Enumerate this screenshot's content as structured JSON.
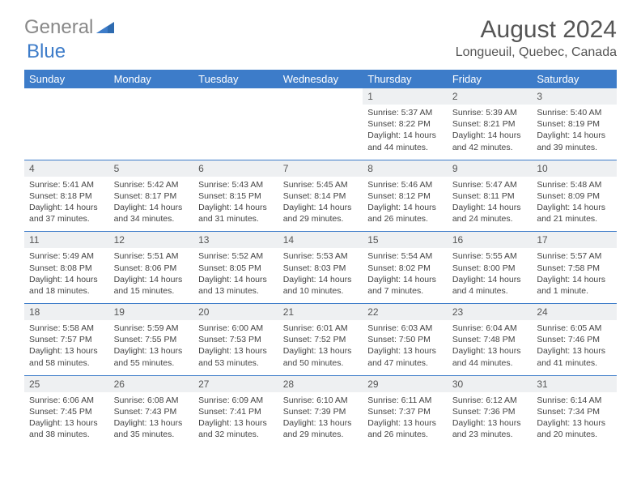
{
  "brand": {
    "part1": "General",
    "part2": "Blue"
  },
  "title": "August 2024",
  "location": "Longueuil, Quebec, Canada",
  "colors": {
    "header_bg": "#3d7cc9",
    "daynum_bg": "#eef0f2",
    "text": "#444444",
    "logo_gray": "#888888",
    "logo_blue": "#3d7cc9"
  },
  "daynames": [
    "Sunday",
    "Monday",
    "Tuesday",
    "Wednesday",
    "Thursday",
    "Friday",
    "Saturday"
  ],
  "weeks": [
    [
      null,
      null,
      null,
      null,
      {
        "n": "1",
        "sr": "Sunrise: 5:37 AM",
        "ss": "Sunset: 8:22 PM",
        "dl": "Daylight: 14 hours and 44 minutes."
      },
      {
        "n": "2",
        "sr": "Sunrise: 5:39 AM",
        "ss": "Sunset: 8:21 PM",
        "dl": "Daylight: 14 hours and 42 minutes."
      },
      {
        "n": "3",
        "sr": "Sunrise: 5:40 AM",
        "ss": "Sunset: 8:19 PM",
        "dl": "Daylight: 14 hours and 39 minutes."
      }
    ],
    [
      {
        "n": "4",
        "sr": "Sunrise: 5:41 AM",
        "ss": "Sunset: 8:18 PM",
        "dl": "Daylight: 14 hours and 37 minutes."
      },
      {
        "n": "5",
        "sr": "Sunrise: 5:42 AM",
        "ss": "Sunset: 8:17 PM",
        "dl": "Daylight: 14 hours and 34 minutes."
      },
      {
        "n": "6",
        "sr": "Sunrise: 5:43 AM",
        "ss": "Sunset: 8:15 PM",
        "dl": "Daylight: 14 hours and 31 minutes."
      },
      {
        "n": "7",
        "sr": "Sunrise: 5:45 AM",
        "ss": "Sunset: 8:14 PM",
        "dl": "Daylight: 14 hours and 29 minutes."
      },
      {
        "n": "8",
        "sr": "Sunrise: 5:46 AM",
        "ss": "Sunset: 8:12 PM",
        "dl": "Daylight: 14 hours and 26 minutes."
      },
      {
        "n": "9",
        "sr": "Sunrise: 5:47 AM",
        "ss": "Sunset: 8:11 PM",
        "dl": "Daylight: 14 hours and 24 minutes."
      },
      {
        "n": "10",
        "sr": "Sunrise: 5:48 AM",
        "ss": "Sunset: 8:09 PM",
        "dl": "Daylight: 14 hours and 21 minutes."
      }
    ],
    [
      {
        "n": "11",
        "sr": "Sunrise: 5:49 AM",
        "ss": "Sunset: 8:08 PM",
        "dl": "Daylight: 14 hours and 18 minutes."
      },
      {
        "n": "12",
        "sr": "Sunrise: 5:51 AM",
        "ss": "Sunset: 8:06 PM",
        "dl": "Daylight: 14 hours and 15 minutes."
      },
      {
        "n": "13",
        "sr": "Sunrise: 5:52 AM",
        "ss": "Sunset: 8:05 PM",
        "dl": "Daylight: 14 hours and 13 minutes."
      },
      {
        "n": "14",
        "sr": "Sunrise: 5:53 AM",
        "ss": "Sunset: 8:03 PM",
        "dl": "Daylight: 14 hours and 10 minutes."
      },
      {
        "n": "15",
        "sr": "Sunrise: 5:54 AM",
        "ss": "Sunset: 8:02 PM",
        "dl": "Daylight: 14 hours and 7 minutes."
      },
      {
        "n": "16",
        "sr": "Sunrise: 5:55 AM",
        "ss": "Sunset: 8:00 PM",
        "dl": "Daylight: 14 hours and 4 minutes."
      },
      {
        "n": "17",
        "sr": "Sunrise: 5:57 AM",
        "ss": "Sunset: 7:58 PM",
        "dl": "Daylight: 14 hours and 1 minute."
      }
    ],
    [
      {
        "n": "18",
        "sr": "Sunrise: 5:58 AM",
        "ss": "Sunset: 7:57 PM",
        "dl": "Daylight: 13 hours and 58 minutes."
      },
      {
        "n": "19",
        "sr": "Sunrise: 5:59 AM",
        "ss": "Sunset: 7:55 PM",
        "dl": "Daylight: 13 hours and 55 minutes."
      },
      {
        "n": "20",
        "sr": "Sunrise: 6:00 AM",
        "ss": "Sunset: 7:53 PM",
        "dl": "Daylight: 13 hours and 53 minutes."
      },
      {
        "n": "21",
        "sr": "Sunrise: 6:01 AM",
        "ss": "Sunset: 7:52 PM",
        "dl": "Daylight: 13 hours and 50 minutes."
      },
      {
        "n": "22",
        "sr": "Sunrise: 6:03 AM",
        "ss": "Sunset: 7:50 PM",
        "dl": "Daylight: 13 hours and 47 minutes."
      },
      {
        "n": "23",
        "sr": "Sunrise: 6:04 AM",
        "ss": "Sunset: 7:48 PM",
        "dl": "Daylight: 13 hours and 44 minutes."
      },
      {
        "n": "24",
        "sr": "Sunrise: 6:05 AM",
        "ss": "Sunset: 7:46 PM",
        "dl": "Daylight: 13 hours and 41 minutes."
      }
    ],
    [
      {
        "n": "25",
        "sr": "Sunrise: 6:06 AM",
        "ss": "Sunset: 7:45 PM",
        "dl": "Daylight: 13 hours and 38 minutes."
      },
      {
        "n": "26",
        "sr": "Sunrise: 6:08 AM",
        "ss": "Sunset: 7:43 PM",
        "dl": "Daylight: 13 hours and 35 minutes."
      },
      {
        "n": "27",
        "sr": "Sunrise: 6:09 AM",
        "ss": "Sunset: 7:41 PM",
        "dl": "Daylight: 13 hours and 32 minutes."
      },
      {
        "n": "28",
        "sr": "Sunrise: 6:10 AM",
        "ss": "Sunset: 7:39 PM",
        "dl": "Daylight: 13 hours and 29 minutes."
      },
      {
        "n": "29",
        "sr": "Sunrise: 6:11 AM",
        "ss": "Sunset: 7:37 PM",
        "dl": "Daylight: 13 hours and 26 minutes."
      },
      {
        "n": "30",
        "sr": "Sunrise: 6:12 AM",
        "ss": "Sunset: 7:36 PM",
        "dl": "Daylight: 13 hours and 23 minutes."
      },
      {
        "n": "31",
        "sr": "Sunrise: 6:14 AM",
        "ss": "Sunset: 7:34 PM",
        "dl": "Daylight: 13 hours and 20 minutes."
      }
    ]
  ]
}
